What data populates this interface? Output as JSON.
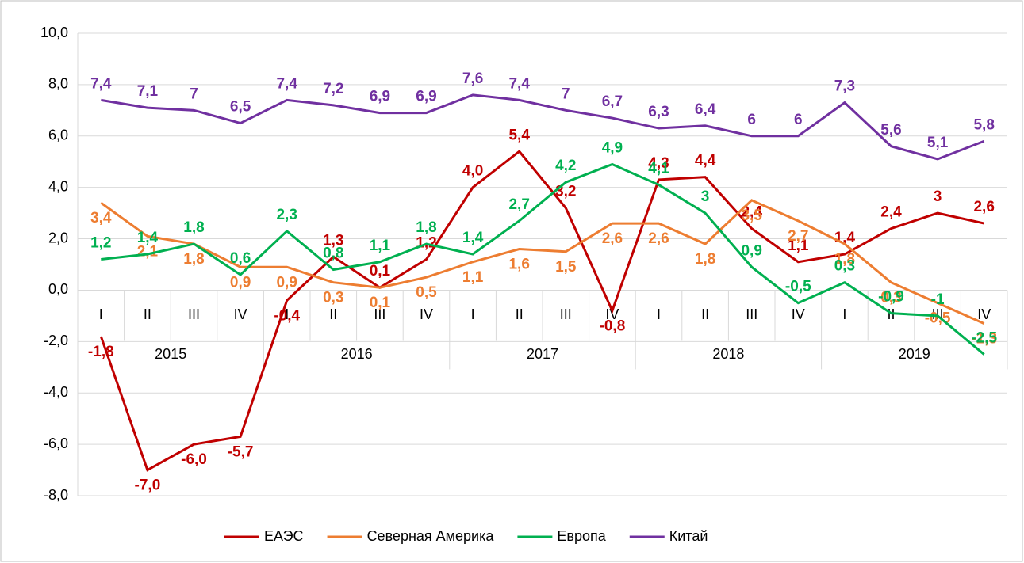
{
  "chart_data": {
    "type": "line",
    "categories": [
      "I",
      "II",
      "III",
      "IV",
      "I",
      "II",
      "III",
      "IV",
      "I",
      "II",
      "III",
      "IV",
      "I",
      "II",
      "III",
      "IV",
      "I",
      "II",
      "III",
      "IV"
    ],
    "years": [
      "2015",
      "2016",
      "2017",
      "2018",
      "2019"
    ],
    "ylim": [
      -8,
      10
    ],
    "yticks": [
      {
        "value": -8,
        "label": "-8,0"
      },
      {
        "value": -6,
        "label": "-6,0"
      },
      {
        "value": -4,
        "label": "-4,0"
      },
      {
        "value": -2,
        "label": "-2,0"
      },
      {
        "value": 0,
        "label": "0,0"
      },
      {
        "value": 2,
        "label": "2,0"
      },
      {
        "value": 4,
        "label": "4,0"
      },
      {
        "value": 6,
        "label": "6,0"
      },
      {
        "value": 8,
        "label": "8,0"
      },
      {
        "value": 10,
        "label": "10,0"
      }
    ],
    "grid": true,
    "legend": "bottom",
    "series": [
      {
        "name": "ЕАЭС",
        "color": "#c00000",
        "values": [
          -1.8,
          -7.0,
          -6.0,
          -5.7,
          -0.4,
          1.3,
          0.1,
          1.2,
          4.0,
          5.4,
          3.2,
          -0.8,
          4.3,
          4.4,
          2.4,
          1.1,
          1.4,
          2.4,
          3,
          2.6
        ],
        "value_labels": [
          "-1,8",
          "-7,0",
          "-6,0",
          "-5,7",
          "-0,4",
          "1,3",
          "0,1",
          "1,2",
          "4,0",
          "5,4",
          "3,2",
          "-0,8",
          "4,3",
          "4,4",
          "2,4",
          "1,1",
          "1,4",
          "2,4",
          "3",
          "2,6"
        ]
      },
      {
        "name": "Северная Америка",
        "color": "#ed7d31",
        "values": [
          3.4,
          2.1,
          1.8,
          0.9,
          0.9,
          0.3,
          0.1,
          0.5,
          1.1,
          1.6,
          1.5,
          2.6,
          2.6,
          1.8,
          3.5,
          2.7,
          1.8,
          0.3,
          -0.5,
          -1.3
        ],
        "value_labels": [
          "3,4",
          "2,1",
          "1,8",
          "0,9",
          "0,9",
          "0,3",
          "0,1",
          "0,5",
          "1,1",
          "1,6",
          "1,5",
          "2,6",
          "2,6",
          "1,8",
          "3,5",
          "2,7",
          "1,8",
          "0,3",
          "-0,5",
          "-1,3"
        ]
      },
      {
        "name": "Европа",
        "color": "#00b050",
        "values": [
          1.2,
          1.4,
          1.8,
          0.6,
          2.3,
          0.8,
          1.1,
          1.8,
          1.4,
          2.7,
          4.2,
          4.9,
          4.1,
          3,
          0.9,
          -0.5,
          0.3,
          -0.9,
          -1,
          -2.5
        ],
        "value_labels": [
          "1,2",
          "1,4",
          "1,8",
          "0,6",
          "2,3",
          "0,8",
          "1,1",
          "1,8",
          "1,4",
          "2,7",
          "4,2",
          "4,9",
          "4,1",
          "3",
          "0,9",
          "-0,5",
          "0,3",
          "-0,9",
          "-1",
          "-2,5"
        ]
      },
      {
        "name": "Китай",
        "color": "#7030a0",
        "values": [
          7.4,
          7.1,
          7,
          6.5,
          7.4,
          7.2,
          6.9,
          6.9,
          7.6,
          7.4,
          7,
          6.7,
          6.3,
          6.4,
          6,
          6,
          7.3,
          5.6,
          5.1,
          5.8
        ],
        "value_labels": [
          "7,4",
          "7,1",
          "7",
          "6,5",
          "7,4",
          "7,2",
          "6,9",
          "6,9",
          "7,6",
          "7,4",
          "7",
          "6,7",
          "6,3",
          "6,4",
          "6",
          "6",
          "7,3",
          "5,6",
          "5,1",
          "5,8"
        ]
      }
    ]
  }
}
